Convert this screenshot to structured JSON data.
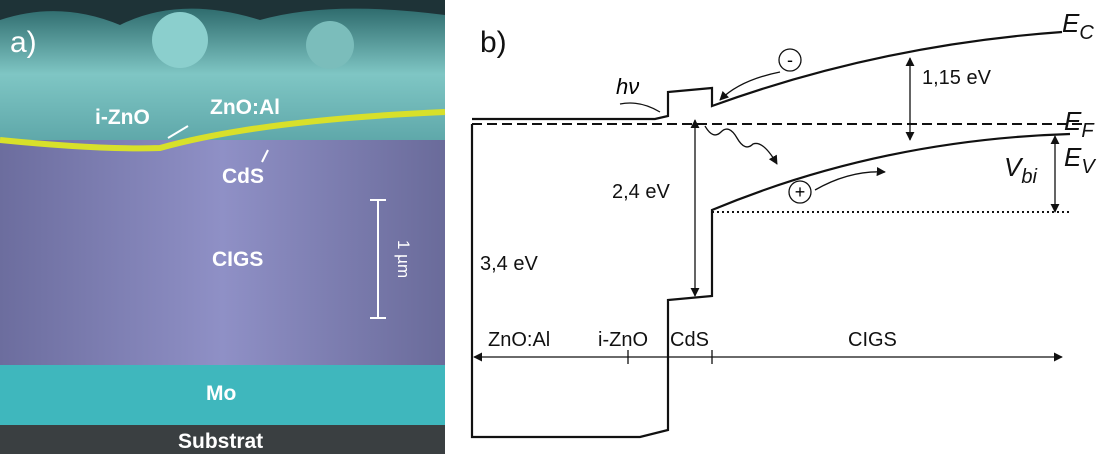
{
  "panel_a": {
    "label": "a)",
    "layers": {
      "zno_al": "ZnO:Al",
      "i_zno": "i-ZnO",
      "cds": "CdS",
      "cigs": "CIGS",
      "mo": "Mo",
      "substrate": "Substrat"
    },
    "scale_bar": "1 µm"
  },
  "panel_b": {
    "label": "b)",
    "photon": "hν",
    "levels": {
      "ec": {
        "main": "E",
        "sub": "C"
      },
      "ef": {
        "main": "E",
        "sub": "F"
      },
      "ev": {
        "main": "E",
        "sub": "V"
      },
      "vbi": {
        "main": "V",
        "sub": "bi"
      }
    },
    "energies": {
      "gap_cigs": "1,15 eV",
      "gap_cds": "2,4 eV",
      "gap_zno": "3,4 eV"
    },
    "carriers": {
      "electron": "-",
      "hole": "+"
    },
    "regions": [
      "ZnO:Al",
      "i-ZnO",
      "CdS",
      "CIGS"
    ]
  }
}
